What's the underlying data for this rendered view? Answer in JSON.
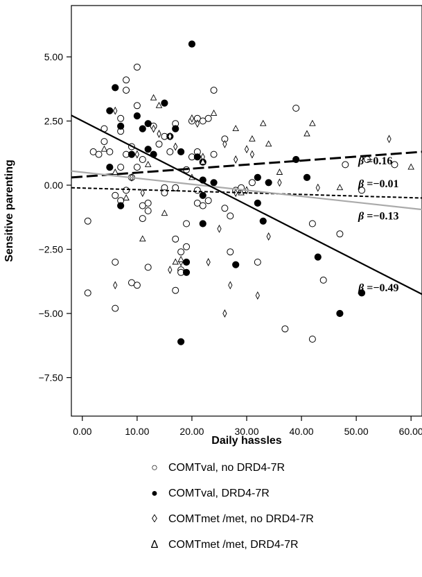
{
  "chart_data": {
    "type": "scatter",
    "xlabel": "Daily hassles",
    "ylabel": "Sensitive parenting",
    "xlim": [
      -2,
      62
    ],
    "ylim": [
      -9,
      7
    ],
    "xticks": [
      0,
      10,
      20,
      30,
      40,
      50,
      60
    ],
    "xtick_labels": [
      "0.00",
      "10.00",
      "20.00",
      "30.00",
      "40.00",
      "50.00",
      "60.00"
    ],
    "yticks": [
      5,
      2.5,
      0,
      -2.5,
      -5,
      -7.5
    ],
    "ytick_labels": [
      "5.00",
      "2.50",
      "0.00",
      "−2.50",
      "−5.00",
      "−7.50"
    ],
    "grid": false,
    "legend_position": "bottom",
    "series": [
      {
        "name": "COMTval, no DRD4-7R",
        "marker": "open-circle",
        "points": [
          [
            1,
            -1.4
          ],
          [
            1,
            -4.2
          ],
          [
            2,
            1.3
          ],
          [
            3,
            1.2
          ],
          [
            4,
            2.2
          ],
          [
            4,
            1.7
          ],
          [
            5,
            1.3
          ],
          [
            6,
            -3.0
          ],
          [
            6,
            -4.8
          ],
          [
            6,
            -0.4
          ],
          [
            7,
            2.6
          ],
          [
            7,
            2.1
          ],
          [
            7,
            0.7
          ],
          [
            7,
            -0.6
          ],
          [
            8,
            3.7
          ],
          [
            8,
            4.1
          ],
          [
            8,
            1.2
          ],
          [
            8,
            -0.2
          ],
          [
            9,
            1.5
          ],
          [
            9,
            0.3
          ],
          [
            9,
            -3.8
          ],
          [
            10,
            4.6
          ],
          [
            10,
            3.1
          ],
          [
            10,
            0.7
          ],
          [
            10,
            -3.9
          ],
          [
            11,
            1.0
          ],
          [
            11,
            -0.8
          ],
          [
            11,
            -1.3
          ],
          [
            12,
            -3.2
          ],
          [
            12,
            -0.7
          ],
          [
            12,
            -1.0
          ],
          [
            13,
            2.3
          ],
          [
            14,
            1.6
          ],
          [
            15,
            1.9
          ],
          [
            15,
            -0.1
          ],
          [
            15,
            -0.3
          ],
          [
            16,
            1.3
          ],
          [
            17,
            2.4
          ],
          [
            17,
            -0.1
          ],
          [
            17,
            -2.1
          ],
          [
            17,
            -4.1
          ],
          [
            18,
            -3.3
          ],
          [
            18,
            -3.4
          ],
          [
            18,
            -2.6
          ],
          [
            19,
            0.6
          ],
          [
            19,
            -1.5
          ],
          [
            19,
            -2.4
          ],
          [
            20,
            2.5
          ],
          [
            20,
            1.1
          ],
          [
            21,
            2.6
          ],
          [
            21,
            1.3
          ],
          [
            21,
            -0.2
          ],
          [
            21,
            -0.7
          ],
          [
            22,
            2.5
          ],
          [
            22,
            -0.8
          ],
          [
            23,
            2.6
          ],
          [
            23,
            -0.6
          ],
          [
            24,
            3.7
          ],
          [
            24,
            1.2
          ],
          [
            26,
            1.8
          ],
          [
            26,
            -0.9
          ],
          [
            27,
            -1.2
          ],
          [
            27,
            -2.6
          ],
          [
            28,
            -0.2
          ],
          [
            29,
            -0.1
          ],
          [
            31,
            0.1
          ],
          [
            32,
            -3.0
          ],
          [
            37,
            -5.6
          ],
          [
            39,
            3.0
          ],
          [
            42,
            -1.5
          ],
          [
            42,
            -6.0
          ],
          [
            44,
            -3.7
          ],
          [
            47,
            -1.9
          ],
          [
            48,
            0.8
          ],
          [
            51,
            -0.2
          ],
          [
            52,
            1.0
          ],
          [
            57,
            0.8
          ]
        ]
      },
      {
        "name": "COMTval, DRD4-7R",
        "marker": "filled-circle",
        "points": [
          [
            5,
            2.9
          ],
          [
            6,
            3.8
          ],
          [
            5,
            0.7
          ],
          [
            7,
            2.3
          ],
          [
            7,
            -0.8
          ],
          [
            9,
            1.2
          ],
          [
            10,
            2.7
          ],
          [
            11,
            2.2
          ],
          [
            12,
            2.4
          ],
          [
            12,
            1.4
          ],
          [
            13,
            1.2
          ],
          [
            15,
            3.2
          ],
          [
            16,
            1.9
          ],
          [
            17,
            2.2
          ],
          [
            18,
            1.3
          ],
          [
            18,
            -6.1
          ],
          [
            19,
            -3.0
          ],
          [
            19,
            -3.4
          ],
          [
            20,
            5.5
          ],
          [
            21,
            1.1
          ],
          [
            22,
            0.9
          ],
          [
            22,
            0.2
          ],
          [
            22,
            -0.4
          ],
          [
            22,
            -1.5
          ],
          [
            24,
            0.1
          ],
          [
            28,
            -3.1
          ],
          [
            32,
            0.3
          ],
          [
            32,
            -0.7
          ],
          [
            33,
            -1.4
          ],
          [
            34,
            0.1
          ],
          [
            39,
            1.0
          ],
          [
            41,
            0.3
          ],
          [
            43,
            -2.8
          ],
          [
            47,
            -5.0
          ],
          [
            51,
            -4.2
          ]
        ]
      },
      {
        "name": "COMTmet /met, no DRD4-7R",
        "marker": "open-diamond",
        "points": [
          [
            6,
            2.9
          ],
          [
            6,
            -3.9
          ],
          [
            9,
            0.3
          ],
          [
            10,
            1.2
          ],
          [
            11,
            -0.3
          ],
          [
            13,
            2.2
          ],
          [
            14,
            2.0
          ],
          [
            16,
            1.9
          ],
          [
            16,
            -3.3
          ],
          [
            17,
            1.5
          ],
          [
            18,
            -3.0
          ],
          [
            20,
            2.6
          ],
          [
            21,
            2.4
          ],
          [
            22,
            1.1
          ],
          [
            23,
            -3.0
          ],
          [
            25,
            -1.7
          ],
          [
            26,
            1.6
          ],
          [
            26,
            -5.0
          ],
          [
            27,
            -3.9
          ],
          [
            28,
            1.0
          ],
          [
            28,
            -0.3
          ],
          [
            30,
            1.4
          ],
          [
            30,
            -0.2
          ],
          [
            31,
            1.2
          ],
          [
            32,
            -4.3
          ],
          [
            34,
            -2.0
          ],
          [
            36,
            0.1
          ],
          [
            43,
            -0.1
          ],
          [
            56,
            1.8
          ]
        ]
      },
      {
        "name": "COMTmet /met, DRD4-7R",
        "marker": "open-triangle",
        "points": [
          [
            4,
            1.4
          ],
          [
            6,
            0.5
          ],
          [
            8,
            -0.5
          ],
          [
            11,
            -2.1
          ],
          [
            12,
            0.8
          ],
          [
            13,
            3.4
          ],
          [
            14,
            3.1
          ],
          [
            15,
            -1.1
          ],
          [
            17,
            -3.0
          ],
          [
            18,
            -2.9
          ],
          [
            20,
            0.3
          ],
          [
            22,
            0.9
          ],
          [
            24,
            2.8
          ],
          [
            28,
            2.2
          ],
          [
            29,
            -0.3
          ],
          [
            31,
            1.8
          ],
          [
            33,
            2.4
          ],
          [
            34,
            1.6
          ],
          [
            36,
            0.5
          ],
          [
            41,
            2.0
          ],
          [
            42,
            2.4
          ],
          [
            47,
            -0.1
          ],
          [
            60,
            0.7
          ]
        ]
      }
    ],
    "regression_lines": [
      {
        "label": "β =0.16",
        "slope_label": "0.16",
        "style": "long-dash",
        "color": "#000000",
        "width": 3,
        "x": [
          -2,
          62
        ],
        "y": [
          0.3,
          1.3
        ]
      },
      {
        "label": "β =−0.01",
        "slope_label": "−0.01",
        "style": "short-dash",
        "color": "#000000",
        "width": 2,
        "x": [
          -2,
          62
        ],
        "y": [
          -0.1,
          -0.5
        ]
      },
      {
        "label": "β =−0.13",
        "slope_label": "−0.13",
        "style": "solid",
        "color": "#aaaaaa",
        "width": 2.2,
        "x": [
          -2,
          62
        ],
        "y": [
          0.55,
          -0.95
        ]
      },
      {
        "label": "β =−0.49",
        "slope_label": "−0.49",
        "style": "solid",
        "color": "#000000",
        "width": 2.2,
        "x": [
          -2,
          62
        ],
        "y": [
          2.72,
          -4.25
        ]
      }
    ]
  },
  "legend": {
    "items": [
      {
        "marker": "○",
        "label": "COMTval, no DRD4-7R"
      },
      {
        "marker": "●",
        "label": "COMTval, DRD4-7R"
      },
      {
        "marker": "◊",
        "label": "COMTmet /met, no DRD4-7R"
      },
      {
        "marker": "Δ",
        "label": "COMTmet /met, DRD4-7R"
      }
    ]
  }
}
